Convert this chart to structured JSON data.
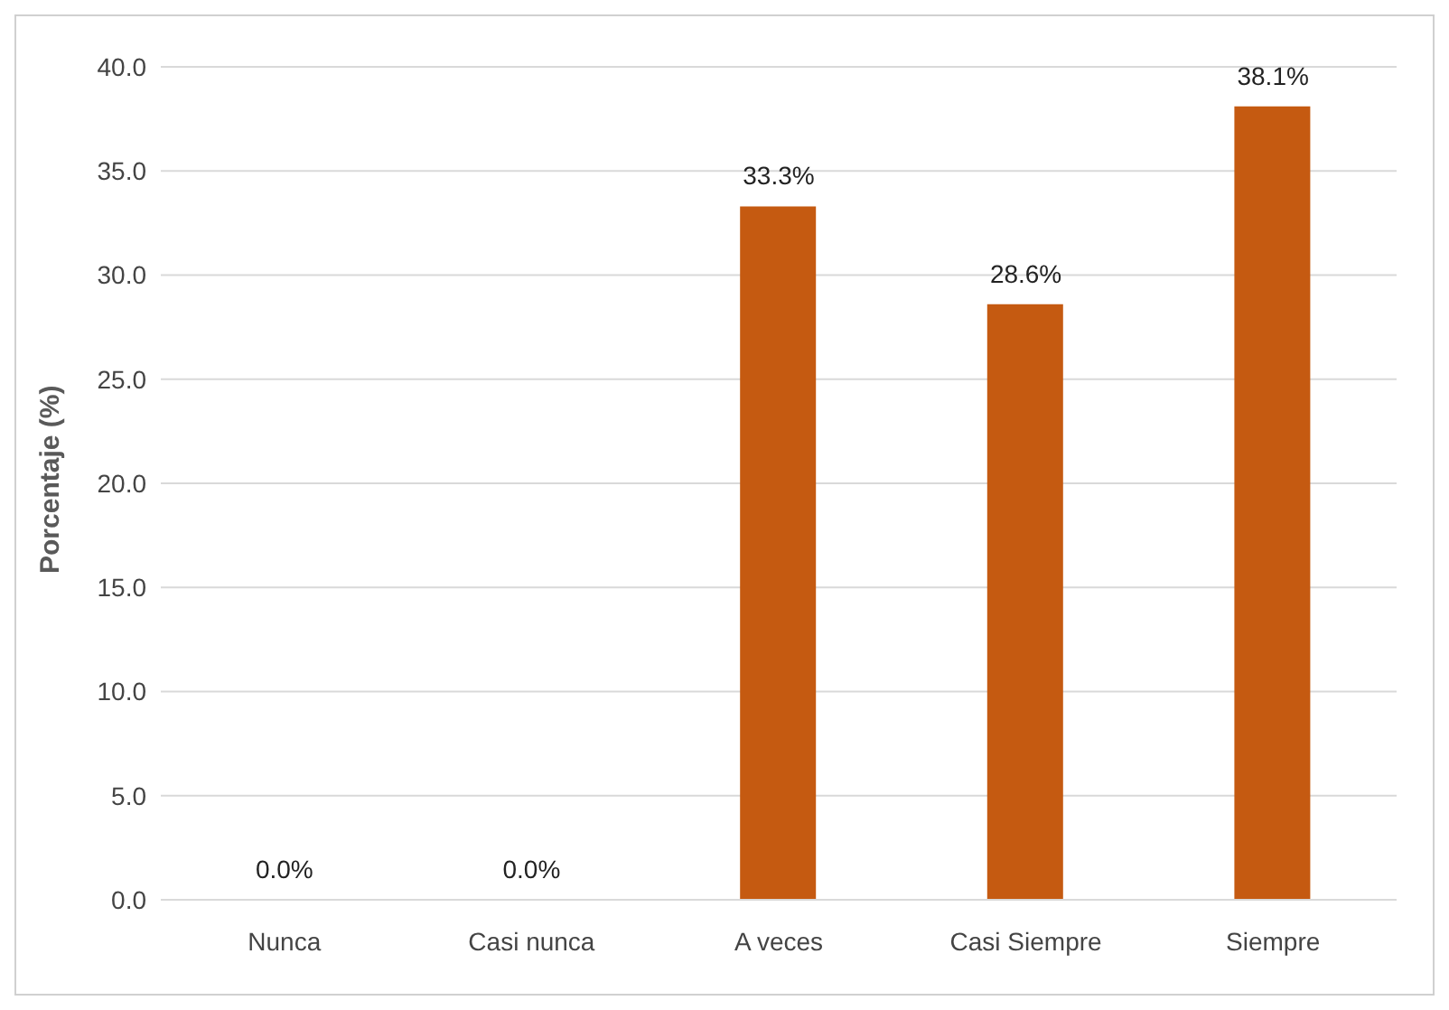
{
  "chart_data": {
    "type": "bar",
    "ylabel": "Porcentaje (%)",
    "categories": [
      "Nunca",
      "Casi nunca",
      "A veces",
      "Casi Siempre",
      "Siempre"
    ],
    "values": [
      0.0,
      0.0,
      33.3,
      28.6,
      38.1
    ],
    "value_labels": [
      "0.0%",
      "0.0%",
      "33.3%",
      "28.6%",
      "38.1%"
    ],
    "color": "#c55a11",
    "ylim": [
      0,
      40
    ],
    "yticks": [
      {
        "value": 0,
        "label": "0.0"
      },
      {
        "value": 5,
        "label": "5.0"
      },
      {
        "value": 10,
        "label": "10.0"
      },
      {
        "value": 15,
        "label": "15.0"
      },
      {
        "value": 20,
        "label": "20.0"
      },
      {
        "value": 25,
        "label": "25.0"
      },
      {
        "value": 30,
        "label": "30.0"
      },
      {
        "value": 35,
        "label": "35.0"
      },
      {
        "value": 40,
        "label": "40.0"
      }
    ],
    "grid": "y",
    "legend": false
  }
}
